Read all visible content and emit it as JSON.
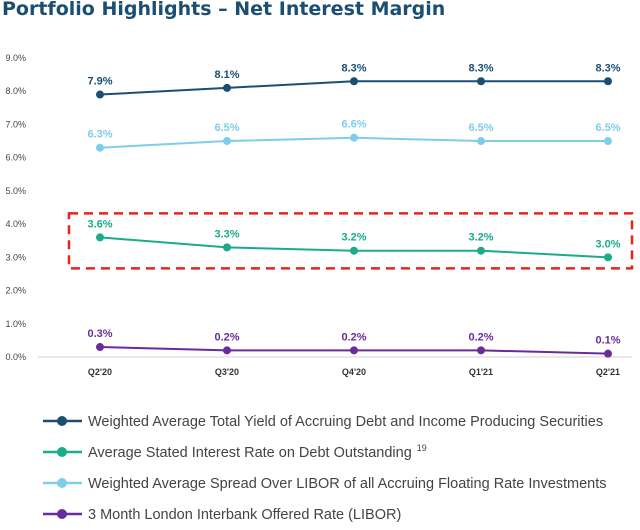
{
  "title": "Portfolio Highlights – Net Interest Margin",
  "chart_data": {
    "type": "line",
    "categories": [
      "Q2'20",
      "Q3'20",
      "Q4'20",
      "Q1'21",
      "Q2'21"
    ],
    "ylim": [
      0,
      9
    ],
    "yticks": [
      "0.0%",
      "1.0%",
      "2.0%",
      "3.0%",
      "4.0%",
      "5.0%",
      "6.0%",
      "7.0%",
      "8.0%",
      "9.0%"
    ],
    "grid": false,
    "legend_placement": "bottom",
    "series": [
      {
        "name": "Weighted Average Total Yield of Accruing Debt and Income Producing Securities",
        "values": [
          7.9,
          8.1,
          8.3,
          8.3,
          8.3
        ],
        "labels": [
          "7.9%",
          "8.1%",
          "8.3%",
          "8.3%",
          "8.3%"
        ],
        "color": "#1b4f72"
      },
      {
        "name": "Average Stated Interest Rate on Debt Outstanding",
        "superscript": "19",
        "values": [
          3.6,
          3.3,
          3.2,
          3.2,
          3.0
        ],
        "labels": [
          "3.6%",
          "3.3%",
          "3.2%",
          "3.2%",
          "3.0%"
        ],
        "color": "#1aab8a",
        "highlighted": true
      },
      {
        "name": "Weighted Average Spread Over LIBOR of all Accruing Floating Rate Investments",
        "values": [
          6.3,
          6.5,
          6.6,
          6.5,
          6.5
        ],
        "labels": [
          "6.3%",
          "6.5%",
          "6.6%",
          "6.5%",
          "6.5%"
        ],
        "color": "#7ecde9"
      },
      {
        "name": "3 Month London Interbank Offered Rate (LIBOR)",
        "values": [
          0.3,
          0.2,
          0.2,
          0.2,
          0.1
        ],
        "labels": [
          "0.3%",
          "0.2%",
          "0.2%",
          "0.2%",
          "0.1%"
        ],
        "color": "#6a2c9c"
      }
    ],
    "highlight": {
      "style": "dashed-box",
      "color": "#e8241b",
      "series_index": 1
    }
  }
}
